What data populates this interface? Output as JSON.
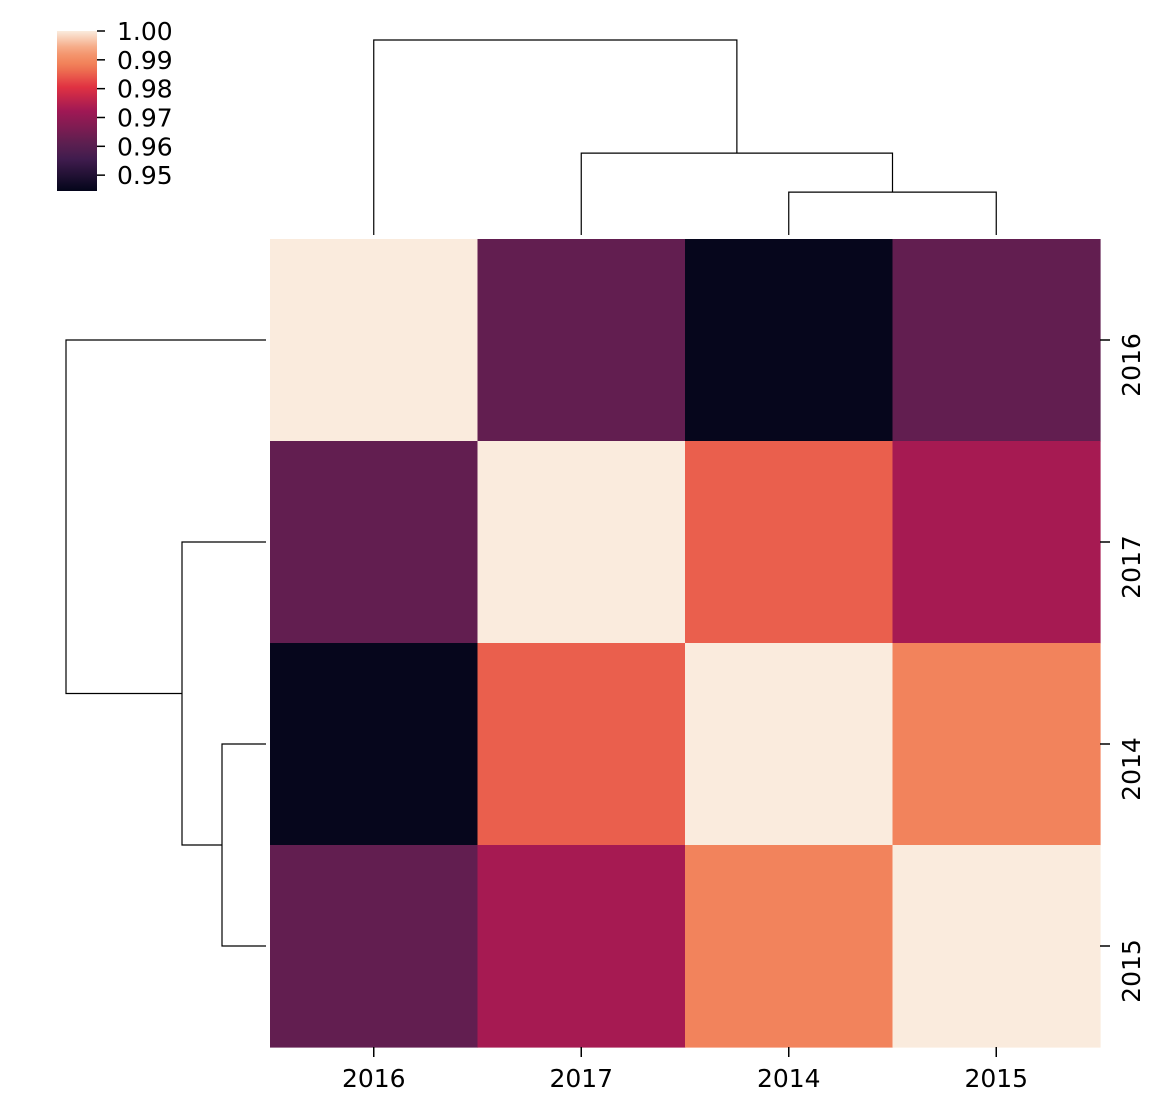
{
  "chart_data": {
    "type": "heatmap",
    "title": "",
    "xlabel": "",
    "ylabel": "",
    "columns": [
      "2016",
      "2017",
      "2014",
      "2015"
    ],
    "rows": [
      "2016",
      "2017",
      "2014",
      "2015"
    ],
    "values": [
      [
        1.0,
        0.962,
        0.945,
        0.962
      ],
      [
        0.962,
        1.0,
        0.985,
        0.973
      ],
      [
        0.945,
        0.985,
        1.0,
        0.989
      ],
      [
        0.962,
        0.973,
        0.989,
        1.0
      ]
    ],
    "colorbar": {
      "min": 0.9445,
      "max": 1.0,
      "ticks": [
        "1.00",
        "0.99",
        "0.98",
        "0.97",
        "0.96",
        "0.95"
      ],
      "tick_values": [
        1.0,
        0.99,
        0.98,
        0.97,
        0.96,
        0.95
      ],
      "colormap": "rocket",
      "placement": "top-left"
    },
    "column_dendrogram": {
      "placement": "top",
      "links": [
        {
          "left": "2014",
          "right": "2015",
          "height": 0.011
        },
        {
          "left": "2017",
          "right": "2014+2015",
          "height": 0.021
        },
        {
          "left": "2016",
          "right": "2017+2014+2015",
          "height": 0.05
        }
      ]
    },
    "row_dendrogram": {
      "placement": "left",
      "links": [
        {
          "left": "2014",
          "right": "2015",
          "height": 0.011
        },
        {
          "left": "2017",
          "right": "2014+2015",
          "height": 0.021
        },
        {
          "left": "2016",
          "right": "2017+2014+2015",
          "height": 0.05
        }
      ]
    },
    "grid": false
  }
}
